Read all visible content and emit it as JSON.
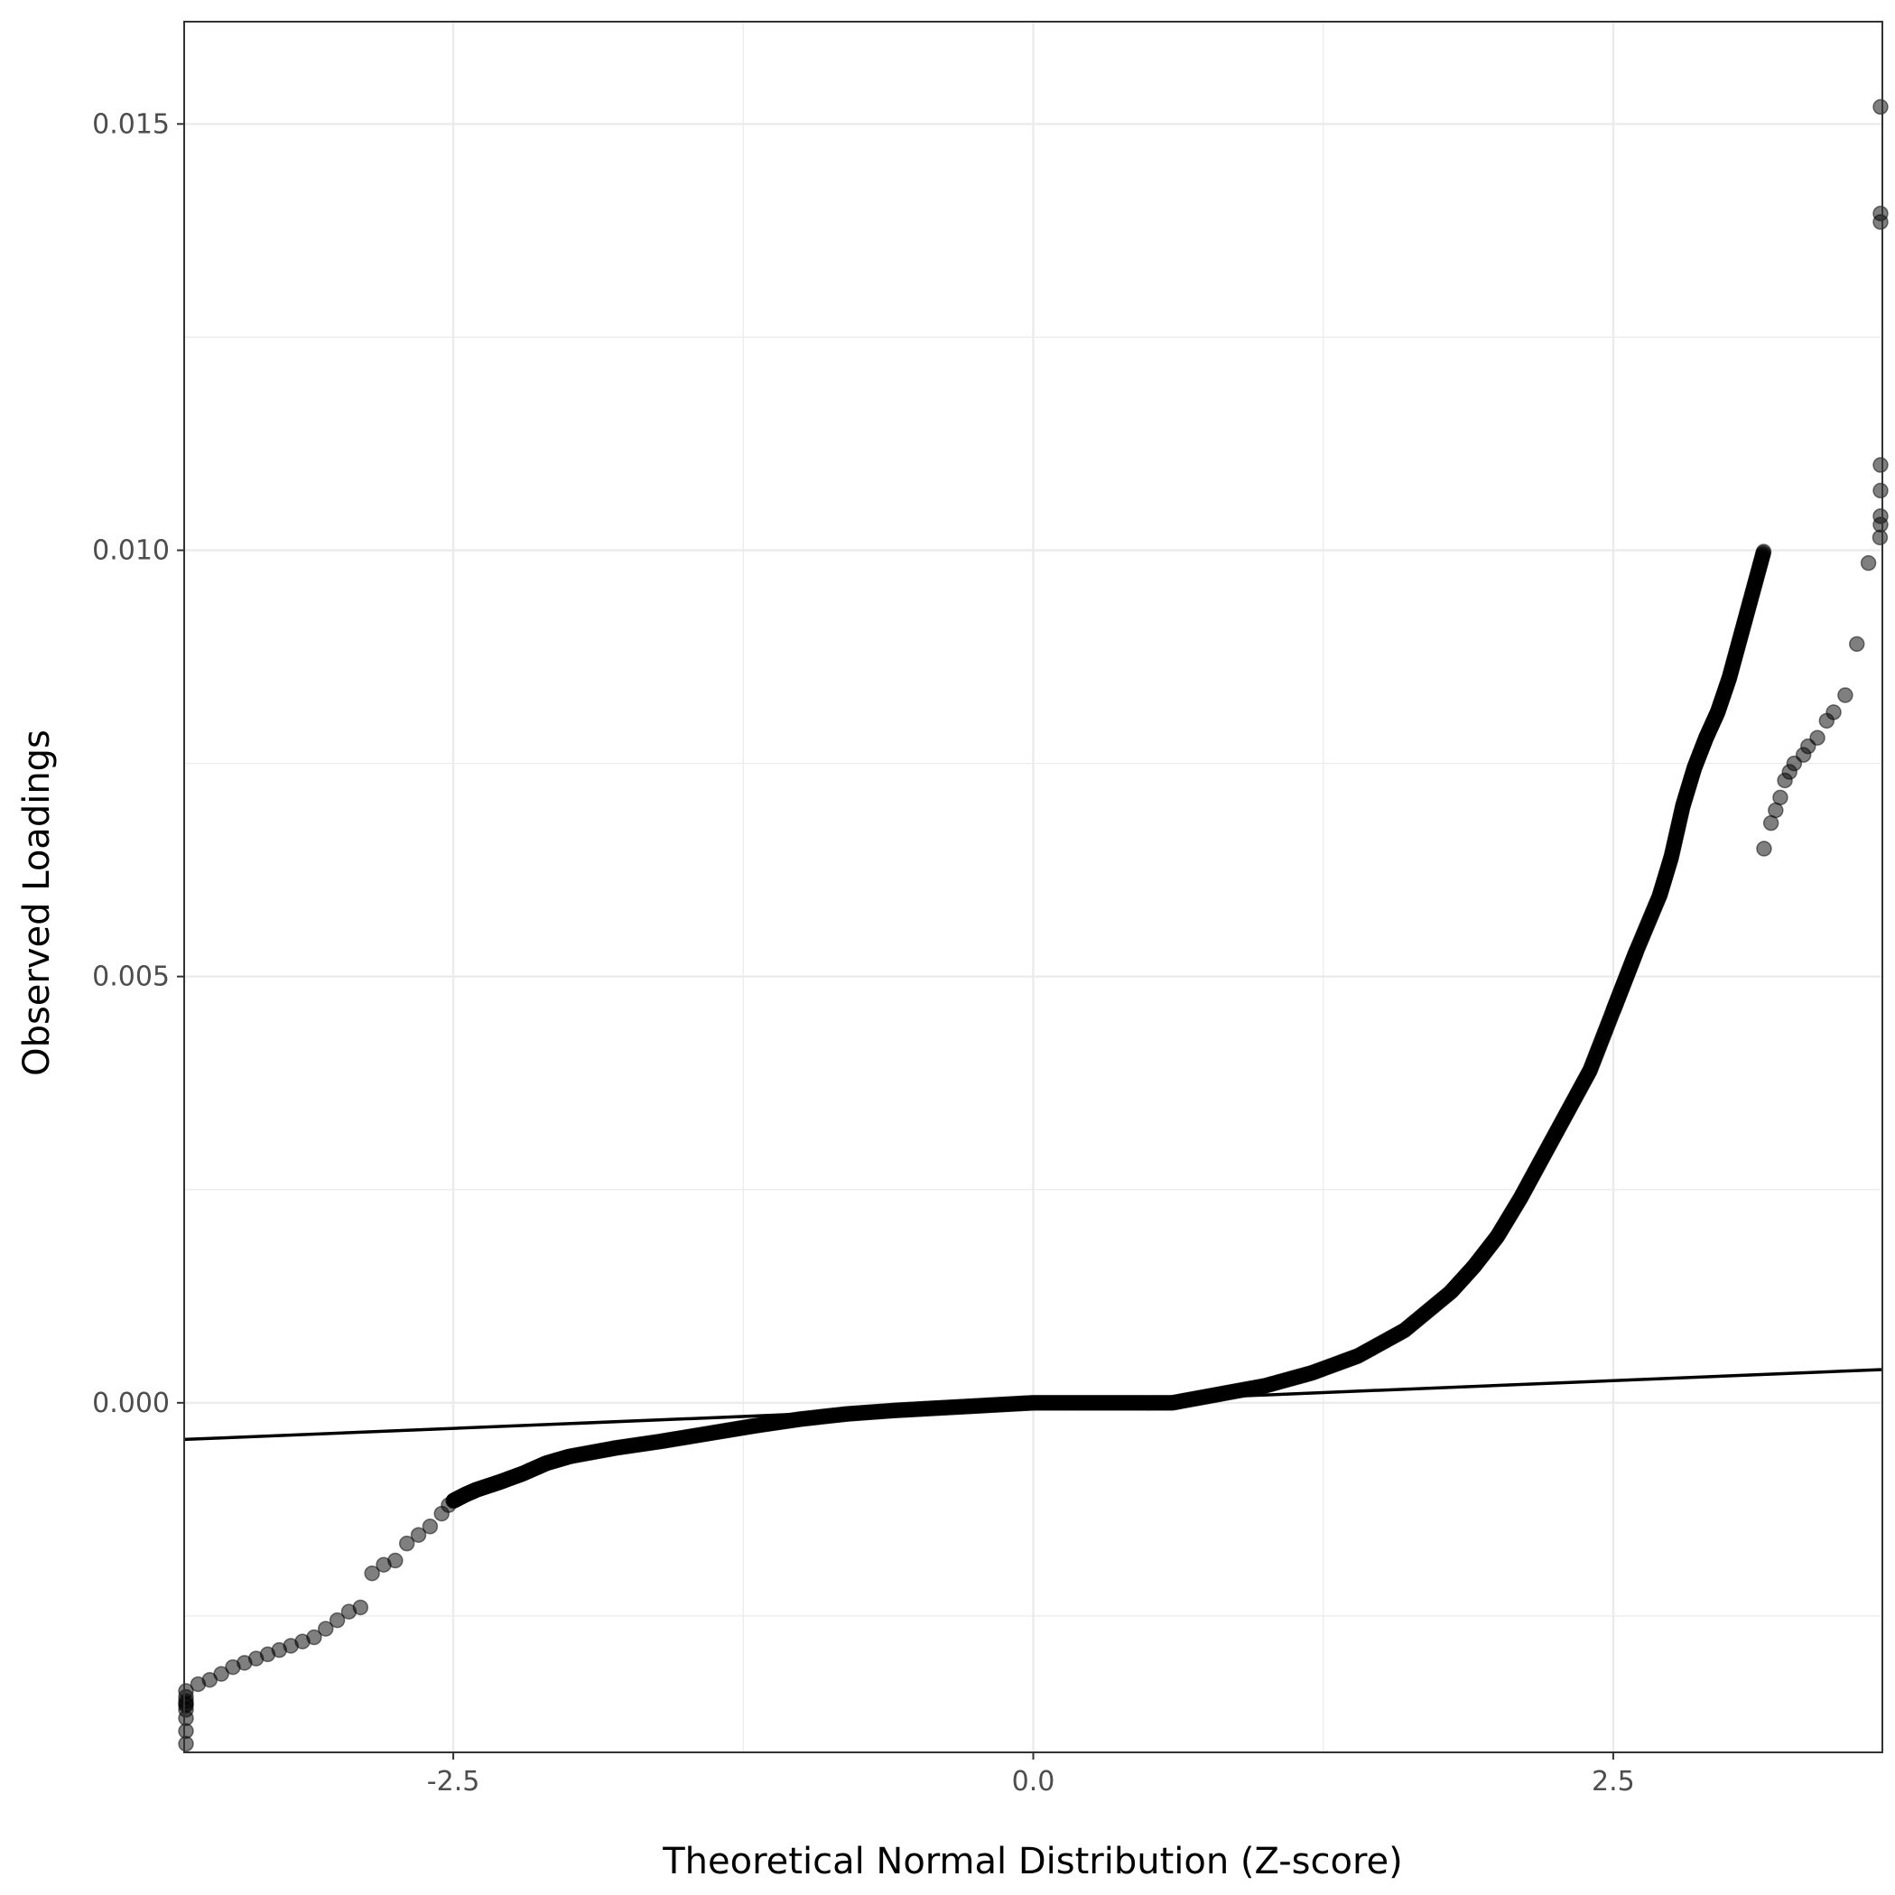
{
  "chart_data": {
    "type": "scatter",
    "xlabel": "Theoretical Normal Distribution (Z-score)",
    "ylabel": "Observed Loadings",
    "xlim": [
      -3.66,
      3.66
    ],
    "ylim": [
      -0.0041,
      0.0162
    ],
    "x_ticks": [
      {
        "value": -2.5,
        "label": "-2.5"
      },
      {
        "value": 0.0,
        "label": "0.0"
      },
      {
        "value": 2.5,
        "label": "2.5"
      }
    ],
    "y_ticks": [
      {
        "value": 0.0,
        "label": "0.000"
      },
      {
        "value": 0.005,
        "label": "0.005"
      },
      {
        "value": 0.01,
        "label": "0.010"
      },
      {
        "value": 0.015,
        "label": "0.015"
      }
    ],
    "grid": true,
    "reference_line": {
      "x": [
        -3.66,
        3.66
      ],
      "y": [
        -0.00043,
        0.00039
      ]
    },
    "point_color": "#000000",
    "point_opacity": 0.5,
    "line_color": "#000000",
    "curve": {
      "x": [
        -2.5,
        -2.45,
        -2.4,
        -2.3,
        -2.2,
        -2.1,
        -2.0,
        -1.8,
        -1.6,
        -1.4,
        -1.2,
        -1.0,
        -0.8,
        -0.6,
        -0.4,
        -0.2,
        0.0,
        0.2,
        0.4,
        0.6,
        0.8,
        1.0,
        1.2,
        1.4,
        1.6,
        1.8,
        1.9,
        2.0,
        2.1,
        2.2,
        2.3,
        2.4,
        2.5,
        2.55,
        2.6,
        2.7,
        2.75,
        2.8,
        2.85,
        2.9,
        2.95,
        3.0,
        3.05,
        3.1,
        3.15
      ],
      "y": [
        -0.00115,
        -0.00108,
        -0.00102,
        -0.00093,
        -0.00083,
        -0.00071,
        -0.00063,
        -0.00053,
        -0.00045,
        -0.00036,
        -0.00027,
        -0.00019,
        -0.00013,
        -9e-05,
        -6e-05,
        -3e-05,
        0.0,
        0.0,
        0.0,
        0.0,
        0.0001,
        0.0002,
        0.00035,
        0.00055,
        0.00085,
        0.0013,
        0.0016,
        0.00195,
        0.0024,
        0.0029,
        0.0034,
        0.0039,
        0.0046,
        0.00495,
        0.0053,
        0.00595,
        0.0064,
        0.007,
        0.00745,
        0.0078,
        0.0081,
        0.0085,
        0.009,
        0.0095,
        0.01
      ]
    },
    "tail_points": [
      {
        "x": -2.52,
        "y": -0.0012
      },
      {
        "x": -2.55,
        "y": -0.0013
      },
      {
        "x": -2.6,
        "y": -0.00145
      },
      {
        "x": -2.65,
        "y": -0.00155
      },
      {
        "x": -2.7,
        "y": -0.00165
      },
      {
        "x": -2.75,
        "y": -0.00185
      },
      {
        "x": -2.8,
        "y": -0.0019
      },
      {
        "x": -2.85,
        "y": -0.002
      },
      {
        "x": -2.9,
        "y": -0.0024
      },
      {
        "x": -2.95,
        "y": -0.00245
      },
      {
        "x": -3.0,
        "y": -0.00255
      },
      {
        "x": -3.05,
        "y": -0.00265
      },
      {
        "x": -3.1,
        "y": -0.00275
      },
      {
        "x": -3.15,
        "y": -0.0028
      },
      {
        "x": -3.2,
        "y": -0.00285
      },
      {
        "x": -3.25,
        "y": -0.0029
      },
      {
        "x": -3.3,
        "y": -0.00295
      },
      {
        "x": -3.35,
        "y": -0.003
      },
      {
        "x": -3.4,
        "y": -0.00305
      },
      {
        "x": -3.45,
        "y": -0.0031
      },
      {
        "x": -3.5,
        "y": -0.00318
      },
      {
        "x": -3.55,
        "y": -0.00325
      },
      {
        "x": -3.6,
        "y": -0.0033
      },
      {
        "x": -3.66,
        "y": -0.00338
      },
      {
        "x": -3.7,
        "y": -0.00345
      },
      {
        "x": -3.78,
        "y": -0.0035
      },
      {
        "x": -3.86,
        "y": -0.00353
      },
      {
        "x": -3.96,
        "y": -0.00355
      },
      {
        "x": -4.1,
        "y": -0.0036
      },
      {
        "x": -4.25,
        "y": -0.0037
      },
      {
        "x": -4.45,
        "y": -0.00385
      },
      {
        "x": -4.6,
        "y": -0.004
      },
      {
        "x": 3.15,
        "y": 0.0065
      },
      {
        "x": 3.18,
        "y": 0.0068
      },
      {
        "x": 3.2,
        "y": 0.00695
      },
      {
        "x": 3.22,
        "y": 0.0071
      },
      {
        "x": 3.24,
        "y": 0.0073
      },
      {
        "x": 3.26,
        "y": 0.0074
      },
      {
        "x": 3.28,
        "y": 0.0075
      },
      {
        "x": 3.32,
        "y": 0.0076
      },
      {
        "x": 3.34,
        "y": 0.0077
      },
      {
        "x": 3.38,
        "y": 0.0078
      },
      {
        "x": 3.42,
        "y": 0.008
      },
      {
        "x": 3.45,
        "y": 0.0081
      },
      {
        "x": 3.5,
        "y": 0.0083
      },
      {
        "x": 3.55,
        "y": 0.0089
      },
      {
        "x": 3.6,
        "y": 0.00985
      },
      {
        "x": 3.65,
        "y": 0.01015
      },
      {
        "x": 3.72,
        "y": 0.0103
      },
      {
        "x": 3.8,
        "y": 0.0104
      },
      {
        "x": 3.9,
        "y": 0.0107
      },
      {
        "x": 4.0,
        "y": 0.011
      },
      {
        "x": 4.1,
        "y": 0.01385
      },
      {
        "x": 4.25,
        "y": 0.01395
      },
      {
        "x": 4.5,
        "y": 0.0152
      }
    ]
  }
}
